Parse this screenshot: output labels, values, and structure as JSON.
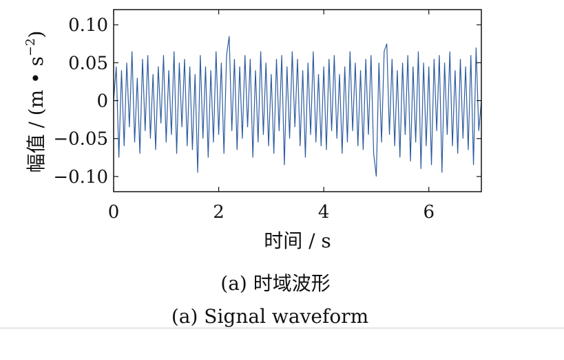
{
  "chart_data": {
    "type": "line",
    "title": "",
    "xlabel": "时间 / s",
    "ylabel": "幅值 / (m • s",
    "ylabel_superscript": "−2",
    "ylabel_close": ")",
    "xlim": [
      0,
      7
    ],
    "ylim": [
      -0.12,
      0.12
    ],
    "xticks": [
      0,
      2,
      4,
      6
    ],
    "xtick_labels": [
      "0",
      "2",
      "4",
      "6"
    ],
    "yticks": [
      0.1,
      0.05,
      0,
      -0.05,
      -0.1
    ],
    "ytick_labels": [
      "0.10",
      "0.05",
      "0",
      "−0.05",
      "−0.10"
    ],
    "grid": false,
    "legend": "none",
    "series": [
      {
        "color": "#2d5b9e",
        "x": [
          0.0,
          0.05,
          0.1,
          0.15,
          0.2,
          0.25,
          0.3,
          0.35,
          0.4,
          0.45,
          0.5,
          0.55,
          0.6,
          0.65,
          0.7,
          0.75,
          0.8,
          0.85,
          0.9,
          0.95,
          1.0,
          1.05,
          1.1,
          1.15,
          1.2,
          1.25,
          1.3,
          1.35,
          1.4,
          1.45,
          1.5,
          1.55,
          1.6,
          1.65,
          1.7,
          1.75,
          1.8,
          1.85,
          1.9,
          1.95,
          2.0,
          2.05,
          2.1,
          2.15,
          2.2,
          2.25,
          2.3,
          2.35,
          2.4,
          2.45,
          2.5,
          2.55,
          2.6,
          2.65,
          2.7,
          2.75,
          2.8,
          2.85,
          2.9,
          2.95,
          3.0,
          3.05,
          3.1,
          3.15,
          3.2,
          3.25,
          3.3,
          3.35,
          3.4,
          3.45,
          3.5,
          3.55,
          3.6,
          3.65,
          3.7,
          3.75,
          3.8,
          3.85,
          3.9,
          3.95,
          4.0,
          4.05,
          4.1,
          4.15,
          4.2,
          4.25,
          4.3,
          4.35,
          4.4,
          4.45,
          4.5,
          4.55,
          4.6,
          4.65,
          4.7,
          4.75,
          4.8,
          4.85,
          4.9,
          4.95,
          5.0,
          5.05,
          5.1,
          5.15,
          5.2,
          5.25,
          5.3,
          5.35,
          5.4,
          5.45,
          5.5,
          5.55,
          5.6,
          5.65,
          5.7,
          5.75,
          5.8,
          5.85,
          5.9,
          5.95,
          6.0,
          6.05,
          6.1,
          6.15,
          6.2,
          6.25,
          6.3,
          6.35,
          6.4,
          6.45,
          6.5,
          6.55,
          6.6,
          6.65,
          6.7,
          6.75,
          6.8,
          6.85,
          6.9,
          6.95,
          7.0
        ],
        "y": [
          0.0,
          0.045,
          -0.075,
          0.04,
          -0.06,
          0.05,
          -0.035,
          0.065,
          -0.055,
          0.03,
          -0.07,
          0.055,
          -0.04,
          0.06,
          -0.05,
          0.035,
          -0.065,
          0.045,
          -0.03,
          0.06,
          -0.055,
          0.04,
          -0.045,
          0.065,
          -0.07,
          0.05,
          -0.035,
          0.055,
          -0.06,
          0.045,
          -0.065,
          0.035,
          -0.095,
          0.06,
          -0.05,
          0.045,
          -0.075,
          0.04,
          -0.055,
          0.065,
          -0.045,
          0.05,
          -0.07,
          0.06,
          0.085,
          -0.04,
          0.055,
          -0.065,
          0.045,
          -0.05,
          0.06,
          -0.035,
          0.055,
          -0.075,
          0.04,
          -0.055,
          0.065,
          -0.045,
          0.05,
          -0.06,
          0.035,
          -0.07,
          0.055,
          -0.04,
          0.06,
          -0.085,
          0.045,
          -0.05,
          0.065,
          -0.035,
          0.055,
          -0.06,
          0.04,
          -0.075,
          0.05,
          -0.045,
          0.065,
          -0.055,
          0.035,
          -0.06,
          0.045,
          -0.065,
          0.055,
          -0.04,
          0.06,
          -0.05,
          0.035,
          -0.07,
          0.045,
          -0.055,
          0.065,
          -0.04,
          0.05,
          -0.06,
          0.04,
          -0.065,
          0.055,
          -0.045,
          0.06,
          -0.07,
          -0.1,
          0.05,
          -0.055,
          0.065,
          0.075,
          -0.045,
          0.055,
          -0.06,
          0.04,
          -0.075,
          0.05,
          -0.045,
          0.06,
          -0.08,
          0.045,
          -0.055,
          0.065,
          -0.09,
          0.05,
          -0.06,
          0.045,
          -0.085,
          0.055,
          -0.04,
          0.06,
          -0.095,
          0.05,
          -0.045,
          0.065,
          -0.06,
          0.04,
          -0.07,
          0.055,
          -0.05,
          0.045,
          -0.065,
          0.06,
          -0.085,
          0.07,
          -0.04,
          0.0
        ]
      }
    ]
  },
  "captions": {
    "chinese": "(a) 时域波形",
    "english": "(a) Signal waveform"
  }
}
